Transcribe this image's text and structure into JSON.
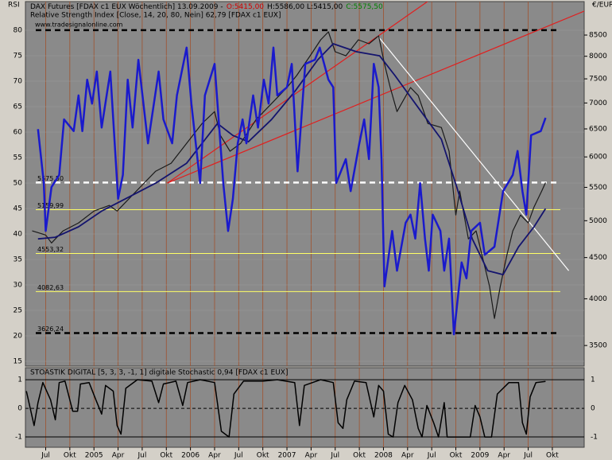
{
  "chart_data": [
    {
      "type": "line",
      "title_parts": [
        {
          "text": "DAX Futures [FDAX c1 EUX  Wöchentlich] 13.09.2009 -",
          "color": "#000000"
        },
        {
          "text": "O:5415,00",
          "color": "#d00000"
        },
        {
          "text": "H:5586,00 L:5415,00",
          "color": "#000000"
        },
        {
          "text": "C:5575,50",
          "color": "#008000"
        }
      ],
      "subtitle": "Relative Strength Index [Close, 14, 20, 80, Nein] 62,79 [FDAX c1 EUX]",
      "source": "www.tradesignalonline.com",
      "ylabel": "RSI",
      "y2label": "€/EUR",
      "xlim": [
        2004.29,
        2010.08
      ],
      "ylim": [
        14.06,
        85.63
      ],
      "yticks": [
        15,
        20,
        25,
        30,
        35,
        40,
        45,
        50,
        55,
        60,
        65,
        70,
        75,
        80
      ],
      "y2lim": [
        3300,
        9353
      ],
      "y2log": true,
      "y2ticks": [
        3500,
        4000,
        4500,
        5000,
        5500,
        6000,
        6500,
        7000,
        7500,
        8000,
        8500
      ],
      "background": "#8a8a8a",
      "series": [
        {
          "color": "#1a1acc",
          "axis": "y",
          "width": 2.5,
          "x": [
            2004.42,
            2004.48,
            2004.5,
            2004.56,
            2004.64,
            2004.69,
            2004.79,
            2004.84,
            2004.88,
            2004.93,
            2004.98,
            2005.03,
            2005.08,
            2005.17,
            2005.22,
            2005.25,
            2005.3,
            2005.35,
            2005.4,
            2005.46,
            2005.56,
            2005.67,
            2005.72,
            2005.81,
            2005.86,
            2005.96,
            2006.01,
            2006.1,
            2006.15,
            2006.25,
            2006.34,
            2006.39,
            2006.44,
            2006.49,
            2006.54,
            2006.58,
            2006.65,
            2006.7,
            2006.76,
            2006.81,
            2006.86,
            2006.9,
            2007.0,
            2007.05,
            2007.11,
            2007.19,
            2007.29,
            2007.34,
            2007.43,
            2007.48,
            2007.51,
            2007.61,
            2007.66,
            2007.75,
            2007.8,
            2007.85,
            2007.9,
            2007.95,
            2007.98,
            2008.01,
            2008.09,
            2008.14,
            2008.23,
            2008.28,
            2008.33,
            2008.38,
            2008.43,
            2008.47,
            2008.51,
            2008.59,
            2008.63,
            2008.68,
            2008.73,
            2008.81,
            2008.86,
            2008.91,
            2009.0,
            2009.05,
            2009.15,
            2009.24,
            2009.34,
            2009.39,
            2009.44,
            2009.48,
            2009.53,
            2009.63,
            2009.68
          ],
          "values": [
            60.6,
            50.0,
            40.6,
            49.2,
            51.6,
            62.5,
            60.2,
            67.2,
            60.2,
            70.3,
            65.6,
            71.9,
            60.9,
            71.9,
            56.3,
            46.9,
            51.6,
            70.3,
            60.9,
            74.2,
            57.8,
            71.9,
            62.5,
            57.8,
            67.2,
            76.6,
            65.6,
            50.0,
            67.2,
            73.4,
            50.0,
            40.6,
            46.9,
            57.8,
            62.5,
            57.8,
            67.2,
            60.9,
            70.3,
            65.6,
            76.6,
            67.2,
            68.8,
            73.4,
            52.3,
            73.4,
            74.2,
            76.6,
            70.3,
            68.8,
            50.0,
            54.7,
            48.4,
            57.8,
            62.5,
            54.7,
            73.4,
            68.8,
            54.7,
            29.7,
            40.6,
            32.8,
            42.2,
            43.8,
            39.1,
            50.0,
            39.1,
            32.8,
            43.8,
            40.6,
            32.8,
            39.1,
            20.3,
            34.4,
            31.3,
            40.6,
            42.2,
            35.9,
            37.5,
            48.4,
            51.6,
            56.3,
            48.4,
            43.8,
            59.4,
            60.2,
            62.8
          ]
        },
        {
          "color": "#1a1a1a",
          "axis": "y2",
          "width": 1.2,
          "x": [
            2004.36,
            2004.5,
            2004.56,
            2004.68,
            2004.84,
            2005.0,
            2005.16,
            2005.24,
            2005.32,
            2005.48,
            2005.64,
            2005.8,
            2005.96,
            2006.12,
            2006.25,
            2006.31,
            2006.41,
            2006.52,
            2006.68,
            2006.84,
            2007.0,
            2007.1,
            2007.24,
            2007.35,
            2007.43,
            2007.5,
            2007.61,
            2007.74,
            2007.85,
            2007.95,
            2008.01,
            2008.07,
            2008.14,
            2008.28,
            2008.36,
            2008.46,
            2008.6,
            2008.68,
            2008.75,
            2008.79,
            2008.88,
            2008.96,
            2009.04,
            2009.1,
            2009.15,
            2009.21,
            2009.28,
            2009.34,
            2009.42,
            2009.5,
            2009.56,
            2009.64,
            2009.68
          ],
          "values": [
            4857,
            4800,
            4692,
            4857,
            4969,
            5140,
            5224,
            5140,
            5259,
            5505,
            5760,
            5893,
            6237,
            6601,
            6830,
            6380,
            6098,
            6237,
            6677,
            6988,
            7316,
            7569,
            8011,
            8385,
            8578,
            8104,
            8011,
            8385,
            8291,
            8481,
            7831,
            7316,
            6830,
            7316,
            7149,
            6601,
            6527,
            6098,
            5082,
            5443,
            4747,
            4857,
            4436,
            4142,
            3782,
            4142,
            4538,
            4857,
            5082,
            4969,
            5200,
            5443,
            5575.5
          ]
        },
        {
          "color": "#14146e",
          "axis": "y2",
          "width": 1.8,
          "x": [
            2004.42,
            2004.6,
            2004.84,
            2005.08,
            2005.32,
            2005.64,
            2005.96,
            2006.28,
            2006.44,
            2006.6,
            2006.84,
            2007.08,
            2007.32,
            2007.48,
            2007.72,
            2007.96,
            2008.12,
            2008.36,
            2008.6,
            2008.76,
            2008.92,
            2009.08,
            2009.24,
            2009.4,
            2009.56,
            2009.68
          ],
          "values": [
            4747,
            4769,
            4913,
            5140,
            5318,
            5567,
            5893,
            6601,
            6380,
            6266,
            6677,
            7232,
            7922,
            8291,
            8104,
            8011,
            7569,
            6909,
            6310,
            5505,
            4747,
            4335,
            4286,
            4640,
            4913,
            5176
          ]
        }
      ],
      "levels": [
        {
          "value": 8620,
          "color": "#000000",
          "dash": true,
          "width": 2.5
        },
        {
          "value": 5575.5,
          "label": "5575,50",
          "color": "#ffffff",
          "dash": true,
          "width": 2.5
        },
        {
          "value": 5159.99,
          "label": "5159,99",
          "color": "#ffff66",
          "dash": false,
          "width": 1
        },
        {
          "value": 4553.32,
          "label": "4553,32",
          "color": "#ffff66",
          "dash": false,
          "width": 1
        },
        {
          "value": 4082.63,
          "label": "4082,63",
          "color": "#ffff66",
          "dash": false,
          "width": 1
        },
        {
          "value": 3626.24,
          "label": "3626,24",
          "color": "#000000",
          "dash": true,
          "width": 2.5
        }
      ],
      "trendlines": [
        {
          "color": "#e02020",
          "x": [
            2005.76,
            2008.48
          ],
          "values": [
            5567,
            9396
          ]
        },
        {
          "color": "#e02020",
          "x": [
            2005.76,
            2010.2
          ],
          "values": [
            5567,
            9226
          ]
        },
        {
          "color": "#ffffff",
          "x": [
            2007.94,
            2009.92
          ],
          "values": [
            8481,
            4335
          ]
        }
      ]
    },
    {
      "type": "line",
      "title": "STOASTIK DIGITAL [5, 3, 3, -1, 1] digitale Stochastic 0,94 [FDAX c1 EUX]",
      "xlim": [
        2004.29,
        2010.08
      ],
      "ylim": [
        -1.36,
        1.42
      ],
      "yticks": [
        1,
        0,
        -1
      ],
      "background": "#8a8a8a",
      "xticks": [
        {
          "value": 2004.5,
          "label": "Jul"
        },
        {
          "value": 2004.75,
          "label": "Okt"
        },
        {
          "value": 2005.0,
          "label": "2005"
        },
        {
          "value": 2005.25,
          "label": "Apr"
        },
        {
          "value": 2005.5,
          "label": "Jul"
        },
        {
          "value": 2005.75,
          "label": "Okt"
        },
        {
          "value": 2006.0,
          "label": "2006"
        },
        {
          "value": 2006.25,
          "label": "Apr"
        },
        {
          "value": 2006.5,
          "label": "Jul"
        },
        {
          "value": 2006.75,
          "label": "Okt"
        },
        {
          "value": 2007.0,
          "label": "2007"
        },
        {
          "value": 2007.25,
          "label": "Apr"
        },
        {
          "value": 2007.5,
          "label": "Jul"
        },
        {
          "value": 2007.75,
          "label": "Okt"
        },
        {
          "value": 2008.0,
          "label": "2008"
        },
        {
          "value": 2008.25,
          "label": "Apr"
        },
        {
          "value": 2008.5,
          "label": "Jul"
        },
        {
          "value": 2008.75,
          "label": "Okt"
        },
        {
          "value": 2009.0,
          "label": "2009"
        },
        {
          "value": 2009.25,
          "label": "Apr"
        },
        {
          "value": 2009.5,
          "label": "Jul"
        },
        {
          "value": 2009.75,
          "label": "Okt"
        }
      ],
      "series": [
        {
          "color": "#000000",
          "width": 1.5,
          "x": [
            2004.3,
            2004.38,
            2004.42,
            2004.47,
            2004.55,
            2004.6,
            2004.64,
            2004.7,
            2004.78,
            2004.83,
            2004.86,
            2004.95,
            2005.02,
            2005.08,
            2005.12,
            2005.2,
            2005.24,
            2005.28,
            2005.33,
            2005.45,
            2005.6,
            2005.67,
            2005.72,
            2005.85,
            2005.92,
            2005.97,
            2006.1,
            2006.25,
            2006.32,
            2006.4,
            2006.45,
            2006.55,
            2006.65,
            2006.75,
            2006.9,
            2007.08,
            2007.13,
            2007.18,
            2007.35,
            2007.48,
            2007.53,
            2007.58,
            2007.62,
            2007.7,
            2007.82,
            2007.9,
            2007.95,
            2008.0,
            2008.05,
            2008.1,
            2008.15,
            2008.22,
            2008.3,
            2008.36,
            2008.4,
            2008.45,
            2008.52,
            2008.57,
            2008.63,
            2008.66,
            2008.8,
            2008.9,
            2008.95,
            2009.0,
            2009.05,
            2009.12,
            2009.18,
            2009.3,
            2009.4,
            2009.44,
            2009.48,
            2009.52,
            2009.58,
            2009.68
          ],
          "values": [
            0.6,
            -0.6,
            0.2,
            0.9,
            0.3,
            -0.4,
            0.9,
            0.95,
            -0.1,
            -0.1,
            0.85,
            0.9,
            0.3,
            -0.2,
            0.8,
            0.6,
            -0.6,
            -0.9,
            0.7,
            1.0,
            0.95,
            0.2,
            0.85,
            0.95,
            0.1,
            0.9,
            1.0,
            0.9,
            -0.8,
            -1.0,
            0.5,
            0.95,
            0.95,
            0.95,
            1.0,
            0.9,
            -0.6,
            0.8,
            1.0,
            0.9,
            -0.5,
            -0.7,
            0.3,
            0.95,
            0.9,
            -0.3,
            0.8,
            0.6,
            -0.9,
            -1.0,
            0.2,
            0.8,
            0.3,
            -0.7,
            -1.0,
            0.1,
            -0.5,
            -1.0,
            0.2,
            -1.0,
            -1.0,
            -1.0,
            0.1,
            -0.3,
            -1.0,
            -1.0,
            0.5,
            0.9,
            0.9,
            -0.5,
            -0.9,
            0.4,
            0.9,
            0.94
          ]
        }
      ]
    }
  ]
}
